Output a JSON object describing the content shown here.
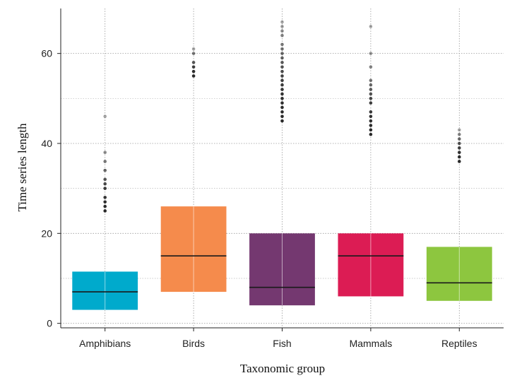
{
  "chart_data": {
    "type": "box",
    "xlabel": "Taxonomic group",
    "ylabel": "Time series length",
    "ylim": [
      -1,
      70
    ],
    "yticks": [
      0,
      20,
      40,
      60
    ],
    "y_minor_gridlines": [
      10,
      30,
      50
    ],
    "grid": true,
    "legend": "none",
    "categories": [
      "Amphibians",
      "Birds",
      "Fish",
      "Mammals",
      "Reptiles"
    ],
    "boxes": [
      {
        "group": "Amphibians",
        "color": "#00aacc",
        "q1": 3,
        "median": 7,
        "q3": 11.5,
        "outliers": [
          25,
          26,
          27,
          28,
          30,
          31,
          32,
          34,
          36,
          38,
          46
        ]
      },
      {
        "group": "Birds",
        "color": "#f58b4c",
        "q1": 7,
        "median": 15,
        "q3": 26,
        "outliers": [
          55,
          56,
          57,
          58,
          60,
          61
        ]
      },
      {
        "group": "Fish",
        "color": "#743870",
        "q1": 4,
        "median": 8,
        "q3": 20,
        "outliers": [
          45,
          46,
          47,
          48,
          49,
          50,
          51,
          52,
          53,
          54,
          55,
          56,
          57,
          58,
          59,
          60,
          61,
          62,
          64,
          65,
          66,
          67
        ]
      },
      {
        "group": "Mammals",
        "color": "#dc1c54",
        "q1": 6,
        "median": 15,
        "q3": 20,
        "outliers": [
          42,
          43,
          44,
          45,
          46,
          47,
          49,
          50,
          51,
          52,
          53,
          54,
          57,
          60,
          66
        ]
      },
      {
        "group": "Reptiles",
        "color": "#8dc63f",
        "q1": 5,
        "median": 9,
        "q3": 17,
        "outliers": [
          36,
          37,
          38,
          39,
          40,
          41,
          42,
          43
        ]
      }
    ]
  }
}
